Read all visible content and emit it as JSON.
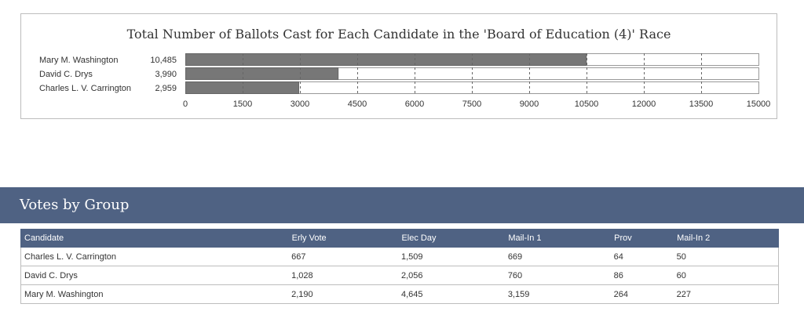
{
  "chart_data": {
    "type": "bar",
    "orientation": "horizontal",
    "title": "Total Number of Ballots Cast for Each Candidate in the 'Board of Education (4)' Race",
    "categories": [
      "Mary M. Washington",
      "David C. Drys",
      "Charles L. V. Carrington"
    ],
    "values": [
      10485,
      3990,
      2959
    ],
    "value_labels": [
      "10,485",
      "3,990",
      "2,959"
    ],
    "xlim": [
      0,
      15000
    ],
    "xticks": [
      0,
      1500,
      3000,
      4500,
      6000,
      7500,
      9000,
      10500,
      12000,
      13500,
      15000
    ],
    "grid": true,
    "bar_color": "#777777"
  },
  "section": {
    "title": "Votes by Group"
  },
  "table": {
    "headers": [
      "Candidate",
      "Erly Vote",
      "Elec Day",
      "Mail-In 1",
      "Prov",
      "Mail-In 2"
    ],
    "rows": [
      [
        "Charles L. V. Carrington",
        "667",
        "1,509",
        "669",
        "64",
        "50"
      ],
      [
        "David C. Drys",
        "1,028",
        "2,056",
        "760",
        "86",
        "60"
      ],
      [
        "Mary M. Washington",
        "2,190",
        "4,645",
        "3,159",
        "264",
        "227"
      ]
    ]
  }
}
